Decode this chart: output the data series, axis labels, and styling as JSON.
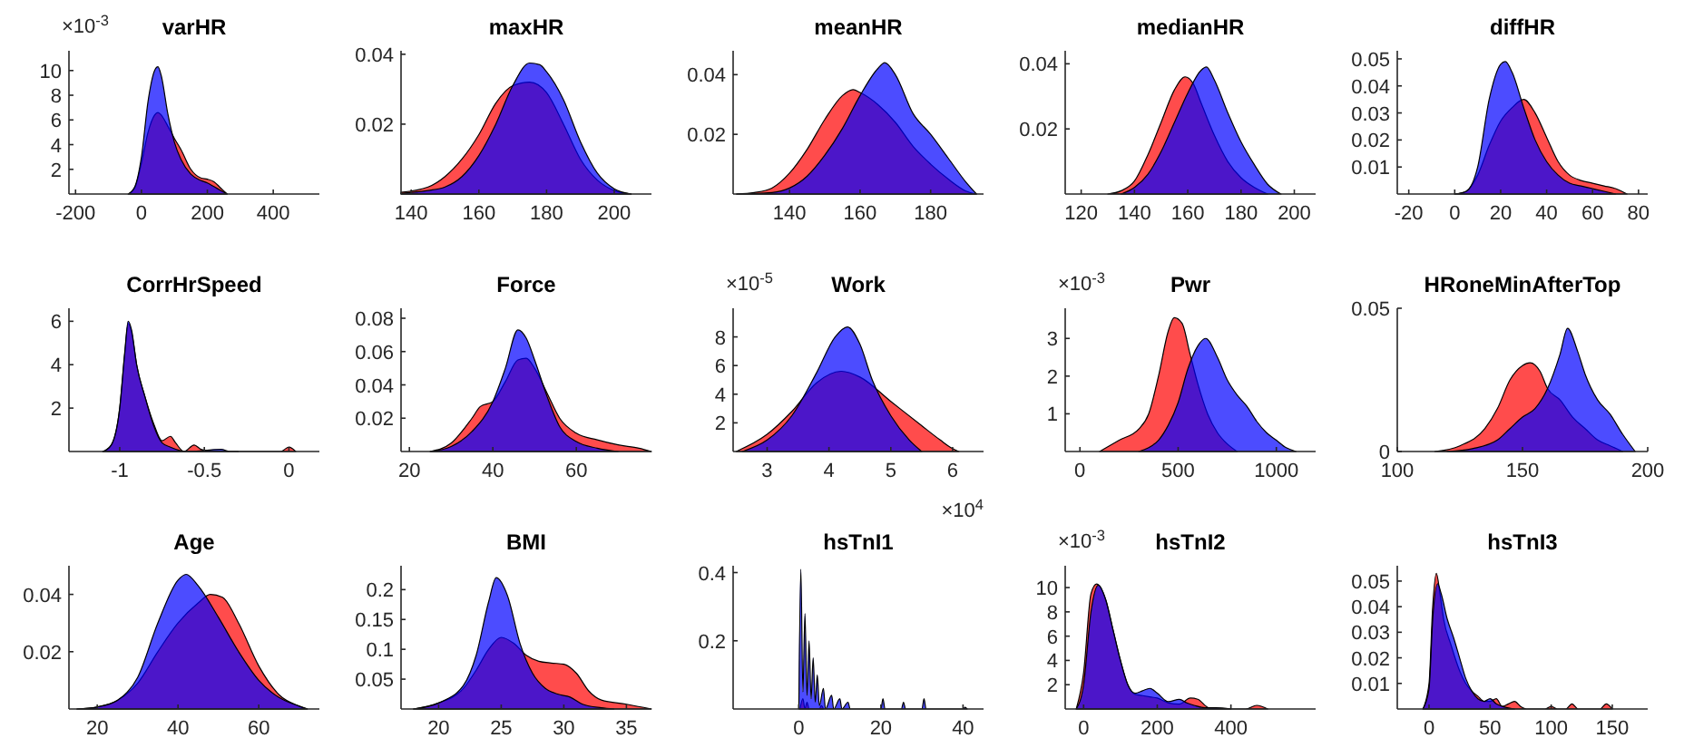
{
  "chart_data": [
    {
      "type": "area",
      "title": "varHR",
      "ylabel": "×10$^{-3}$",
      "xlim": [
        -220,
        540
      ],
      "ylim": [
        0,
        11.6
      ],
      "xticks": [
        -200,
        0,
        200,
        400
      ],
      "yticks": [
        2,
        4,
        6,
        8,
        10
      ],
      "series": [
        {
          "color": "#ff0000",
          "x": [
            -40,
            -20,
            0,
            20,
            40,
            50,
            60,
            80,
            100,
            120,
            150,
            180,
            200,
            220,
            240,
            260
          ],
          "values": [
            0,
            0.5,
            2.5,
            5,
            6.4,
            6.6,
            6.4,
            5.5,
            4.5,
            3.6,
            2,
            1.3,
            1.2,
            1,
            0.5,
            0
          ]
        },
        {
          "color": "#0000ff",
          "x": [
            -40,
            -20,
            0,
            20,
            40,
            50,
            60,
            80,
            100,
            120,
            150,
            180,
            200,
            220,
            240,
            260
          ],
          "values": [
            0,
            0.6,
            3,
            7.5,
            10,
            10.3,
            9.6,
            6.5,
            4.2,
            2.8,
            1.6,
            1.1,
            0.9,
            0.6,
            0.3,
            0
          ]
        }
      ]
    },
    {
      "type": "area",
      "title": "maxHR",
      "xlim": [
        137,
        211
      ],
      "ylim": [
        0,
        0.041
      ],
      "xticks": [
        140,
        160,
        180,
        200
      ],
      "yticks": [
        0.02,
        0.04
      ],
      "series": [
        {
          "color": "#ff0000",
          "x": [
            137,
            145,
            150,
            155,
            160,
            165,
            170,
            175,
            180,
            185,
            190,
            195,
            200,
            205
          ],
          "values": [
            0.0005,
            0.002,
            0.005,
            0.01,
            0.017,
            0.026,
            0.031,
            0.032,
            0.029,
            0.02,
            0.01,
            0.004,
            0.001,
            0
          ]
        },
        {
          "color": "#0000ff",
          "x": [
            137,
            145,
            150,
            155,
            160,
            165,
            170,
            175,
            178,
            180,
            185,
            190,
            195,
            200,
            205
          ],
          "values": [
            0.0002,
            0.001,
            0.002,
            0.005,
            0.011,
            0.02,
            0.031,
            0.0375,
            0.037,
            0.035,
            0.027,
            0.015,
            0.006,
            0.0015,
            0
          ]
        }
      ]
    },
    {
      "type": "area",
      "title": "meanHR",
      "xlim": [
        124,
        195
      ],
      "ylim": [
        0,
        0.048
      ],
      "xticks": [
        140,
        160,
        180
      ],
      "yticks": [
        0.02,
        0.04
      ],
      "series": [
        {
          "color": "#ff0000",
          "x": [
            125,
            130,
            135,
            140,
            145,
            150,
            155,
            158,
            160,
            165,
            170,
            175,
            180,
            185,
            190,
            193
          ],
          "values": [
            0,
            0.0005,
            0.002,
            0.007,
            0.015,
            0.025,
            0.033,
            0.035,
            0.034,
            0.03,
            0.024,
            0.016,
            0.01,
            0.005,
            0.001,
            0
          ]
        },
        {
          "color": "#0000ff",
          "x": [
            125,
            135,
            140,
            145,
            150,
            155,
            160,
            165,
            167,
            170,
            175,
            180,
            185,
            190,
            193
          ],
          "values": [
            0,
            0.0005,
            0.002,
            0.006,
            0.013,
            0.022,
            0.033,
            0.042,
            0.044,
            0.04,
            0.027,
            0.02,
            0.012,
            0.004,
            0
          ]
        }
      ]
    },
    {
      "type": "area",
      "title": "medianHR",
      "xlim": [
        114,
        208
      ],
      "ylim": [
        0,
        0.044
      ],
      "xticks": [
        120,
        140,
        160,
        180,
        200
      ],
      "yticks": [
        0.02,
        0.04
      ],
      "series": [
        {
          "color": "#ff0000",
          "x": [
            130,
            135,
            140,
            145,
            150,
            155,
            159,
            162,
            165,
            170,
            175,
            180,
            185,
            190
          ],
          "values": [
            0,
            0.001,
            0.004,
            0.012,
            0.022,
            0.032,
            0.036,
            0.034,
            0.028,
            0.018,
            0.01,
            0.005,
            0.002,
            0
          ]
        },
        {
          "color": "#0000ff",
          "x": [
            135,
            140,
            145,
            150,
            155,
            160,
            165,
            167,
            170,
            175,
            180,
            185,
            190,
            195
          ],
          "values": [
            0,
            0.002,
            0.006,
            0.013,
            0.022,
            0.031,
            0.038,
            0.039,
            0.035,
            0.025,
            0.016,
            0.009,
            0.003,
            0
          ]
        }
      ]
    },
    {
      "type": "area",
      "title": "diffHR",
      "xlim": [
        -25,
        84
      ],
      "ylim": [
        0,
        0.053
      ],
      "xticks": [
        -20,
        0,
        20,
        40,
        60,
        80
      ],
      "yticks": [
        0.01,
        0.02,
        0.03,
        0.04,
        0.05
      ],
      "series": [
        {
          "color": "#ff0000",
          "x": [
            0,
            5,
            10,
            15,
            20,
            25,
            30,
            35,
            40,
            45,
            50,
            55,
            60,
            65,
            70,
            75
          ],
          "values": [
            0,
            0.001,
            0.007,
            0.018,
            0.027,
            0.032,
            0.035,
            0.03,
            0.021,
            0.012,
            0.007,
            0.005,
            0.004,
            0.003,
            0.002,
            0
          ]
        },
        {
          "color": "#0000ff",
          "x": [
            0,
            5,
            10,
            15,
            20,
            22,
            25,
            30,
            35,
            40,
            45,
            50,
            55,
            60,
            65,
            70
          ],
          "values": [
            0,
            0.001,
            0.01,
            0.035,
            0.048,
            0.049,
            0.045,
            0.032,
            0.02,
            0.012,
            0.007,
            0.004,
            0.003,
            0.002,
            0.001,
            0
          ]
        }
      ]
    },
    {
      "type": "area",
      "title": "CorrHrSpeed",
      "xlim": [
        -1.3,
        0.18
      ],
      "ylim": [
        0,
        6.6
      ],
      "xticks": [
        -1,
        -0.5,
        0
      ],
      "yticks": [
        2,
        4,
        6
      ],
      "series": [
        {
          "color": "#ff0000",
          "x": [
            -1.1,
            -1.05,
            -1,
            -0.97,
            -0.95,
            -0.93,
            -0.9,
            -0.85,
            -0.8,
            -0.75,
            -0.7,
            -0.67,
            -0.62,
            -0.56,
            -0.52,
            -0.45,
            -0.05,
            0,
            0.04
          ],
          "values": [
            0,
            0.3,
            2,
            4.5,
            5.9,
            5.5,
            4,
            2.5,
            1.3,
            0.5,
            0.7,
            0.4,
            0,
            0.3,
            0.1,
            0,
            0,
            0.2,
            0
          ]
        },
        {
          "color": "#0000ff",
          "x": [
            -1.1,
            -1.05,
            -1,
            -0.97,
            -0.95,
            -0.93,
            -0.9,
            -0.85,
            -0.8,
            -0.75,
            -0.7,
            -0.6,
            -0.4,
            -0.35,
            -0.3
          ],
          "values": [
            0,
            0.3,
            2,
            4.6,
            6,
            5.6,
            4,
            2.5,
            1.2,
            0.4,
            0.2,
            0,
            0.1,
            0,
            0
          ]
        }
      ]
    },
    {
      "type": "area",
      "title": "Force",
      "xlim": [
        18,
        78
      ],
      "ylim": [
        0,
        0.086
      ],
      "xticks": [
        20,
        40,
        60
      ],
      "yticks": [
        0.02,
        0.04,
        0.06,
        0.08
      ],
      "series": [
        {
          "color": "#ff0000",
          "x": [
            25,
            30,
            35,
            37,
            40,
            43,
            46,
            48,
            50,
            53,
            56,
            60,
            65,
            70,
            75,
            78
          ],
          "values": [
            0,
            0.005,
            0.02,
            0.027,
            0.03,
            0.042,
            0.055,
            0.056,
            0.05,
            0.035,
            0.02,
            0.011,
            0.007,
            0.004,
            0.002,
            0
          ]
        },
        {
          "color": "#0000ff",
          "x": [
            25,
            30,
            35,
            40,
            43,
            46,
            48,
            50,
            53,
            56,
            60,
            65,
            70
          ],
          "values": [
            0,
            0.003,
            0.012,
            0.03,
            0.05,
            0.073,
            0.068,
            0.055,
            0.033,
            0.015,
            0.006,
            0.002,
            0
          ]
        }
      ]
    },
    {
      "type": "area",
      "title": "Work",
      "xlabel": "×10$^{4}$",
      "ylabel": "×10$^{-5}$",
      "xlim": [
        2.45,
        6.5
      ],
      "ylim": [
        0,
        10
      ],
      "xticks": [
        3,
        4,
        5,
        6
      ],
      "yticks": [
        2,
        4,
        6,
        8
      ],
      "series": [
        {
          "color": "#ff0000",
          "x": [
            2.5,
            3,
            3.4,
            3.8,
            4.2,
            4.5,
            5,
            5.5,
            5.8,
            6,
            6.1
          ],
          "values": [
            0,
            1.2,
            2.8,
            4.8,
            5.6,
            5.2,
            3.5,
            1.8,
            0.8,
            0.2,
            0
          ]
        },
        {
          "color": "#0000ff",
          "x": [
            2.6,
            3,
            3.4,
            3.8,
            4.1,
            4.3,
            4.5,
            4.7,
            5,
            5.3,
            5.5
          ],
          "values": [
            0,
            0.8,
            2.5,
            5.5,
            8,
            8.7,
            7.5,
            5,
            2.5,
            0.8,
            0
          ]
        }
      ]
    },
    {
      "type": "area",
      "title": "Pwr",
      "ylabel": "×10$^{-3}$",
      "xlim": [
        -75,
        1200
      ],
      "ylim": [
        0,
        3.8
      ],
      "xticks": [
        0,
        500,
        1000
      ],
      "yticks": [
        1,
        2,
        3
      ],
      "series": [
        {
          "color": "#ff0000",
          "x": [
            100,
            200,
            300,
            350,
            400,
            450,
            480,
            520,
            560,
            600,
            650,
            700,
            750,
            800
          ],
          "values": [
            0,
            0.3,
            0.6,
            1,
            2,
            3.2,
            3.55,
            3.4,
            2.6,
            1.8,
            1,
            0.5,
            0.2,
            0
          ]
        },
        {
          "color": "#0000ff",
          "x": [
            300,
            350,
            400,
            450,
            500,
            550,
            600,
            640,
            700,
            750,
            800,
            850,
            900,
            950,
            1000,
            1050,
            1100
          ],
          "values": [
            0,
            0.1,
            0.3,
            0.7,
            1.3,
            2.2,
            2.8,
            3,
            2.5,
            1.9,
            1.5,
            1.2,
            0.8,
            0.5,
            0.3,
            0.1,
            0
          ]
        }
      ]
    },
    {
      "type": "area",
      "title": "HRoneMinAfterTop",
      "xlim": [
        100,
        200
      ],
      "ylim": [
        0,
        0.05
      ],
      "xticks": [
        100,
        150,
        200
      ],
      "yticks": [
        0,
        0.05
      ],
      "series": [
        {
          "color": "#ff0000",
          "x": [
            115,
            125,
            135,
            140,
            145,
            150,
            153,
            157,
            160,
            165,
            170,
            175,
            180,
            185,
            190
          ],
          "values": [
            0,
            0.002,
            0.008,
            0.015,
            0.025,
            0.03,
            0.031,
            0.028,
            0.022,
            0.018,
            0.012,
            0.008,
            0.004,
            0.002,
            0
          ]
        },
        {
          "color": "#0000ff",
          "x": [
            120,
            130,
            140,
            145,
            150,
            155,
            160,
            165,
            168,
            172,
            175,
            180,
            185,
            190,
            195
          ],
          "values": [
            0,
            0.001,
            0.004,
            0.008,
            0.012,
            0.015,
            0.022,
            0.034,
            0.043,
            0.035,
            0.027,
            0.018,
            0.013,
            0.006,
            0
          ]
        }
      ]
    },
    {
      "type": "area",
      "title": "Age",
      "xlim": [
        13,
        75
      ],
      "ylim": [
        0,
        0.05
      ],
      "xticks": [
        20,
        40,
        60
      ],
      "yticks": [
        0.02,
        0.04
      ],
      "series": [
        {
          "color": "#ff0000",
          "x": [
            15,
            20,
            25,
            30,
            35,
            40,
            45,
            48,
            51,
            55,
            60,
            65,
            70,
            72
          ],
          "values": [
            0,
            0.0007,
            0.003,
            0.009,
            0.02,
            0.03,
            0.037,
            0.04,
            0.039,
            0.03,
            0.015,
            0.005,
            0.001,
            0
          ]
        },
        {
          "color": "#0000ff",
          "x": [
            15,
            20,
            25,
            30,
            35,
            40,
            42,
            45,
            50,
            55,
            60,
            65,
            70,
            72
          ],
          "values": [
            0,
            0.0007,
            0.003,
            0.011,
            0.03,
            0.045,
            0.047,
            0.043,
            0.032,
            0.02,
            0.01,
            0.004,
            0.001,
            0
          ]
        }
      ]
    },
    {
      "type": "area",
      "title": "BMI",
      "xlim": [
        17,
        37
      ],
      "ylim": [
        0,
        0.24
      ],
      "xticks": [
        20,
        25,
        30,
        35
      ],
      "yticks": [
        0.05,
        0.1,
        0.15,
        0.2
      ],
      "series": [
        {
          "color": "#ff0000",
          "x": [
            18,
            20,
            22,
            23,
            24,
            25,
            26,
            27,
            28,
            29,
            30,
            31,
            32,
            33,
            35,
            37
          ],
          "values": [
            0,
            0.01,
            0.035,
            0.065,
            0.1,
            0.12,
            0.11,
            0.09,
            0.08,
            0.077,
            0.075,
            0.06,
            0.03,
            0.015,
            0.008,
            0
          ]
        },
        {
          "color": "#0000ff",
          "x": [
            18,
            20,
            22,
            23,
            24,
            24.6,
            25.5,
            26.5,
            27.5,
            28.5,
            29.5,
            30.5,
            31.5,
            33,
            34
          ],
          "values": [
            0,
            0.01,
            0.04,
            0.09,
            0.18,
            0.22,
            0.19,
            0.11,
            0.06,
            0.035,
            0.025,
            0.02,
            0.008,
            0.002,
            0
          ]
        }
      ]
    },
    {
      "type": "area",
      "title": "hsTnI1",
      "xlim": [
        -16,
        45
      ],
      "ylim": [
        0,
        0.42
      ],
      "xticks": [
        0,
        20,
        40
      ],
      "yticks": [
        0.2,
        0.4
      ],
      "series": [
        {
          "color": "#ff0000",
          "x": [
            0.3,
            1,
            1.5,
            2,
            2.5,
            5,
            5.5,
            6
          ],
          "values": [
            0,
            0.03,
            0,
            0.02,
            0,
            0,
            0.01,
            0
          ]
        },
        {
          "color": "#0000ff",
          "x": [
            0,
            0.5,
            1,
            1.5,
            2,
            2.5,
            3,
            3.5,
            4,
            4.5,
            5,
            6,
            6.5,
            8,
            8.5,
            10,
            10.5,
            12,
            12.5,
            20,
            20.5,
            21,
            25,
            25.5,
            26,
            30,
            30.5,
            31,
            40,
            40.5,
            41
          ],
          "values": [
            0,
            0.41,
            0.05,
            0.28,
            0.04,
            0.2,
            0.03,
            0.15,
            0.02,
            0.1,
            0.01,
            0.06,
            0,
            0.04,
            0,
            0.03,
            0,
            0.02,
            0,
            0,
            0.03,
            0,
            0,
            0.02,
            0,
            0,
            0.03,
            0,
            0,
            0.005,
            0
          ]
        }
      ]
    },
    {
      "type": "area",
      "title": "hsTnI2",
      "ylabel": "×10$^{-3}$",
      "xlim": [
        -50,
        630
      ],
      "ylim": [
        0,
        11.8
      ],
      "xticks": [
        0,
        200,
        400
      ],
      "yticks": [
        2,
        4,
        6,
        8,
        10
      ],
      "series": [
        {
          "color": "#ff0000",
          "x": [
            -20,
            0,
            20,
            35,
            60,
            80,
            100,
            120,
            140,
            160,
            180,
            200,
            230,
            260,
            290,
            310,
            340,
            380,
            440,
            470,
            500
          ],
          "values": [
            0,
            3,
            9.5,
            10.3,
            9,
            6.5,
            4,
            2,
            1.2,
            1.1,
            1,
            0.9,
            0.5,
            0.4,
            0.9,
            0.8,
            0.1,
            0,
            0,
            0.3,
            0
          ]
        },
        {
          "color": "#0000ff",
          "x": [
            -20,
            0,
            20,
            40,
            60,
            80,
            100,
            120,
            140,
            160,
            180,
            200,
            230,
            260,
            280,
            300,
            330,
            360,
            400
          ],
          "values": [
            0,
            2,
            8,
            10.2,
            9,
            6.5,
            4,
            2,
            1.3,
            1.5,
            1.7,
            1.3,
            0.6,
            0.8,
            0.5,
            0.3,
            0.1,
            0.1,
            0
          ]
        }
      ]
    },
    {
      "type": "area",
      "title": "hsTnI3",
      "xlim": [
        -26,
        179
      ],
      "ylim": [
        0,
        0.056
      ],
      "xticks": [
        0,
        50,
        100,
        150
      ],
      "yticks": [
        0.01,
        0.02,
        0.03,
        0.04,
        0.05
      ],
      "series": [
        {
          "color": "#ff0000",
          "x": [
            -5,
            0,
            3,
            6,
            9,
            12,
            18,
            25,
            30,
            35,
            40,
            45,
            50,
            55,
            60,
            65,
            70,
            75,
            80,
            95,
            100,
            105,
            112,
            117,
            122,
            140,
            145,
            150
          ],
          "values": [
            0,
            0.01,
            0.04,
            0.053,
            0.045,
            0.035,
            0.025,
            0.015,
            0.01,
            0.007,
            0.005,
            0.003,
            0.003,
            0.004,
            0.001,
            0.002,
            0.003,
            0.001,
            0,
            0,
            0.001,
            0,
            0,
            0.002,
            0,
            0,
            0.002,
            0
          ]
        },
        {
          "color": "#0000ff",
          "x": [
            -5,
            0,
            3,
            7,
            10,
            15,
            20,
            25,
            30,
            35,
            40,
            45,
            50,
            55,
            60,
            70
          ],
          "values": [
            0,
            0.008,
            0.035,
            0.049,
            0.045,
            0.035,
            0.028,
            0.02,
            0.012,
            0.007,
            0.004,
            0.003,
            0.004,
            0.002,
            0.001,
            0
          ]
        }
      ]
    }
  ]
}
